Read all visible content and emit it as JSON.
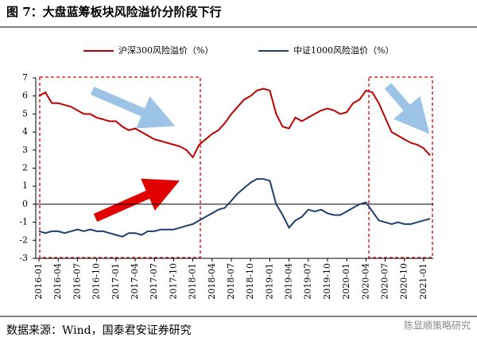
{
  "chart_data": {
    "type": "line",
    "title": "图 7：大盘蓝筹板块风险溢价分阶段下行",
    "source": "数据来源：Wind，国泰君安证券研究",
    "watermark": "陈显顺策略研究",
    "categories": [
      "2016-01",
      null,
      null,
      "2016-04",
      null,
      null,
      "2016-07",
      null,
      null,
      "2016-10",
      null,
      null,
      "2017-01",
      null,
      null,
      "2017-04",
      null,
      null,
      "2017-07",
      null,
      null,
      "2017-10",
      null,
      null,
      "2018-01",
      null,
      null,
      "2018-04",
      null,
      null,
      "2018-07",
      null,
      null,
      "2018-10",
      null,
      null,
      "2019-01",
      null,
      null,
      "2019-04",
      null,
      null,
      "2019-07",
      null,
      null,
      "2019-10",
      null,
      null,
      "2020-01",
      null,
      null,
      "2020-04",
      null,
      null,
      "2020-07",
      null,
      null,
      "2020-10",
      null,
      null,
      "2021-01",
      null
    ],
    "series": [
      {
        "name": "沪深300风险溢价（%）",
        "color": "#c00000",
        "values": [
          6.0,
          6.2,
          5.6,
          5.6,
          5.5,
          5.4,
          5.2,
          5.0,
          5.0,
          4.8,
          4.7,
          4.6,
          4.6,
          4.3,
          4.1,
          4.2,
          4.0,
          3.8,
          3.6,
          3.5,
          3.4,
          3.3,
          3.2,
          3.0,
          2.6,
          3.3,
          3.6,
          3.9,
          4.1,
          4.5,
          5.0,
          5.4,
          5.8,
          6.0,
          6.3,
          6.4,
          6.3,
          5.0,
          4.3,
          4.2,
          4.8,
          4.6,
          4.8,
          5.0,
          5.2,
          5.3,
          5.2,
          5.0,
          5.1,
          5.6,
          5.8,
          6.3,
          6.2,
          5.6,
          4.8,
          4.0,
          3.8,
          3.6,
          3.4,
          3.3,
          3.1,
          2.7
        ]
      },
      {
        "name": "中证1000风险溢价（%）",
        "color": "#1f3f6e",
        "values": [
          -1.5,
          -1.6,
          -1.5,
          -1.5,
          -1.6,
          -1.5,
          -1.4,
          -1.5,
          -1.4,
          -1.5,
          -1.5,
          -1.6,
          -1.7,
          -1.8,
          -1.6,
          -1.6,
          -1.7,
          -1.5,
          -1.5,
          -1.4,
          -1.4,
          -1.4,
          -1.3,
          -1.2,
          -1.1,
          -0.9,
          -0.7,
          -0.5,
          -0.3,
          -0.2,
          0.2,
          0.6,
          0.9,
          1.2,
          1.4,
          1.4,
          1.3,
          0.0,
          -0.6,
          -1.3,
          -0.9,
          -0.7,
          -0.3,
          -0.4,
          -0.3,
          -0.5,
          -0.6,
          -0.6,
          -0.4,
          -0.2,
          0.0,
          0.1,
          -0.4,
          -0.9,
          -1.0,
          -1.1,
          -1.0,
          -1.1,
          -1.1,
          -1.0,
          -0.9,
          -0.8
        ]
      }
    ],
    "ylim": [
      -3,
      7
    ],
    "yticks": [
      -3,
      -2,
      -1,
      0,
      1,
      2,
      3,
      4,
      5,
      6,
      7
    ]
  }
}
